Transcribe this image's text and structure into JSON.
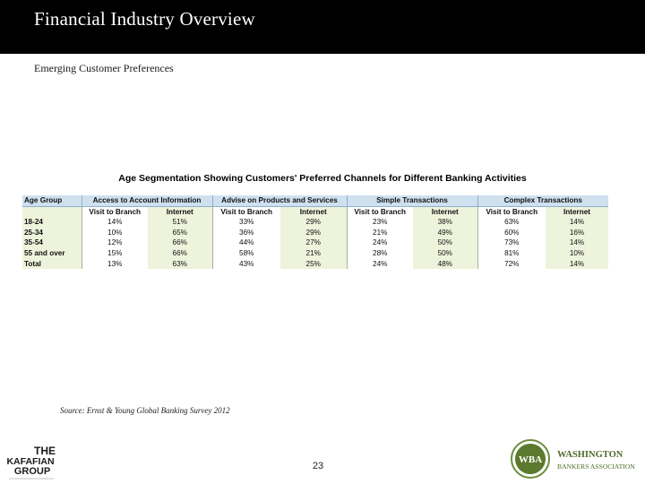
{
  "header": {
    "title": "Financial Industry Overview"
  },
  "subtitle": "Emerging Customer Preferences",
  "table": {
    "title": "Age Segmentation Showing Customers' Preferred Channels for Different Banking Activities",
    "age_group_label": "Age Group",
    "groups": [
      "Access to Account Information",
      "Advise on Products and Services",
      "Simple Transactions",
      "Complex Transactions"
    ],
    "subheaders": [
      "Visit to Branch",
      "Internet",
      "Visit to Branch",
      "Internet",
      "Visit to Branch",
      "Internet",
      "Visit to Branch",
      "Internet"
    ],
    "rows": [
      {
        "age": "18-24",
        "values": [
          "14%",
          "51%",
          "33%",
          "29%",
          "23%",
          "38%",
          "63%",
          "14%"
        ]
      },
      {
        "age": "25-34",
        "values": [
          "10%",
          "65%",
          "36%",
          "29%",
          "21%",
          "49%",
          "60%",
          "16%"
        ]
      },
      {
        "age": "35-54",
        "values": [
          "12%",
          "66%",
          "44%",
          "27%",
          "24%",
          "50%",
          "73%",
          "14%"
        ]
      },
      {
        "age": "55 and over",
        "values": [
          "15%",
          "66%",
          "58%",
          "21%",
          "28%",
          "50%",
          "81%",
          "10%"
        ]
      },
      {
        "age": "Total",
        "values": [
          "13%",
          "63%",
          "43%",
          "25%",
          "24%",
          "48%",
          "72%",
          "14%"
        ]
      }
    ]
  },
  "source": "Source: Ernst & Young Global Banking Survey 2012",
  "page_number": "23",
  "logos": {
    "left": {
      "line1": "THE",
      "line2": "KAFAFIAN",
      "line3": "GROUP",
      "color": "#1a1a1a"
    },
    "right": {
      "badge": "WBA",
      "line1": "WASHINGTON",
      "line2": "BANKERS ASSOCIATION",
      "color": "#4f6b2a"
    }
  }
}
